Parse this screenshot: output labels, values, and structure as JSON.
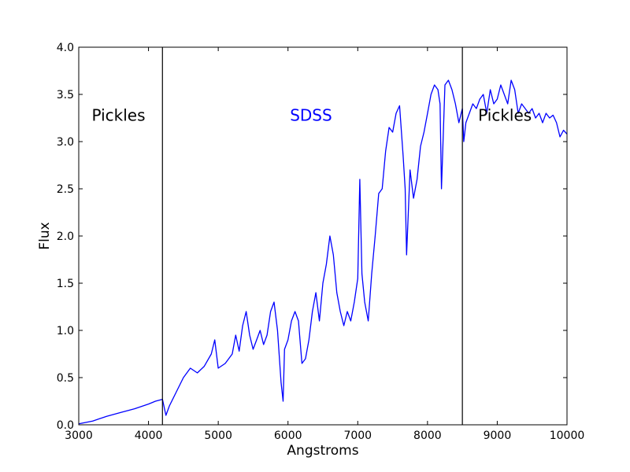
{
  "chart_data": {
    "type": "line",
    "xlabel": "Angstroms",
    "ylabel": "Flux",
    "xlim": [
      3000,
      10000
    ],
    "ylim": [
      0.0,
      4.0
    ],
    "grid": false,
    "x_ticks": [
      "3000",
      "4000",
      "5000",
      "6000",
      "7000",
      "8000",
      "9000",
      "10000"
    ],
    "y_ticks": [
      "0.0",
      "0.5",
      "1.0",
      "1.5",
      "2.0",
      "2.5",
      "3.0",
      "3.5",
      "4.0"
    ],
    "vertical_lines": [
      4200,
      8500
    ],
    "annotations": [
      {
        "id": "pickles-left",
        "text": "Pickles",
        "x": 3570,
        "y": 3.22,
        "color": "#000000"
      },
      {
        "id": "sdss",
        "text": "SDSS",
        "x": 6330,
        "y": 3.22,
        "color": "#0000ff"
      },
      {
        "id": "pickles-right",
        "text": "Pickles",
        "x": 9110,
        "y": 3.22,
        "color": "#000000"
      }
    ],
    "series": [
      {
        "color": "#0000ff",
        "x": [
          3000,
          3200,
          3400,
          3600,
          3800,
          4000,
          4100,
          4200,
          4250,
          4300,
          4400,
          4500,
          4600,
          4700,
          4800,
          4900,
          4950,
          5000,
          5100,
          5200,
          5250,
          5300,
          5350,
          5400,
          5450,
          5500,
          5550,
          5600,
          5650,
          5700,
          5750,
          5800,
          5850,
          5900,
          5930,
          5950,
          6000,
          6050,
          6100,
          6150,
          6200,
          6250,
          6300,
          6350,
          6400,
          6450,
          6500,
          6550,
          6600,
          6650,
          6700,
          6750,
          6800,
          6850,
          6900,
          6950,
          7000,
          7030,
          7060,
          7100,
          7150,
          7200,
          7250,
          7300,
          7350,
          7400,
          7450,
          7500,
          7550,
          7600,
          7650,
          7680,
          7700,
          7750,
          7800,
          7850,
          7900,
          7950,
          8000,
          8050,
          8100,
          8150,
          8180,
          8200,
          8250,
          8300,
          8350,
          8400,
          8450,
          8500,
          8520,
          8550,
          8600,
          8650,
          8700,
          8750,
          8800,
          8850,
          8900,
          8950,
          9000,
          9050,
          9100,
          9150,
          9200,
          9250,
          9300,
          9350,
          9400,
          9450,
          9500,
          9550,
          9600,
          9650,
          9700,
          9750,
          9800,
          9850,
          9900,
          9950,
          10000
        ],
        "values": [
          0.01,
          0.04,
          0.09,
          0.13,
          0.17,
          0.22,
          0.25,
          0.27,
          0.1,
          0.2,
          0.35,
          0.5,
          0.6,
          0.55,
          0.62,
          0.75,
          0.9,
          0.6,
          0.65,
          0.75,
          0.95,
          0.78,
          1.05,
          1.2,
          0.95,
          0.8,
          0.9,
          1.0,
          0.85,
          0.95,
          1.2,
          1.3,
          1.0,
          0.45,
          0.25,
          0.8,
          0.9,
          1.1,
          1.2,
          1.1,
          0.65,
          0.7,
          0.9,
          1.2,
          1.4,
          1.1,
          1.5,
          1.7,
          2.0,
          1.8,
          1.4,
          1.2,
          1.05,
          1.2,
          1.1,
          1.3,
          1.55,
          2.6,
          1.6,
          1.3,
          1.1,
          1.6,
          2.0,
          2.45,
          2.5,
          2.9,
          3.15,
          3.1,
          3.3,
          3.38,
          2.85,
          2.5,
          1.8,
          2.7,
          2.4,
          2.6,
          2.95,
          3.1,
          3.3,
          3.5,
          3.6,
          3.55,
          3.4,
          2.5,
          3.6,
          3.65,
          3.55,
          3.4,
          3.2,
          3.35,
          3.0,
          3.2,
          3.3,
          3.4,
          3.35,
          3.45,
          3.5,
          3.3,
          3.55,
          3.4,
          3.45,
          3.6,
          3.5,
          3.4,
          3.65,
          3.55,
          3.3,
          3.4,
          3.35,
          3.3,
          3.35,
          3.25,
          3.3,
          3.2,
          3.3,
          3.25,
          3.28,
          3.2,
          3.05,
          3.12,
          3.08
        ]
      }
    ]
  }
}
